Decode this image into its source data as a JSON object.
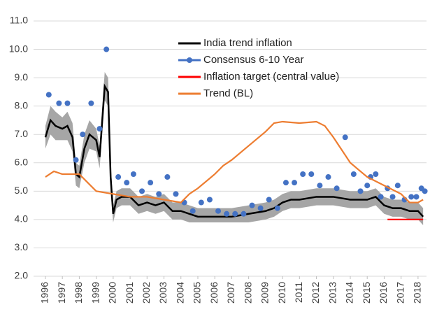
{
  "chart_data": {
    "type": "line",
    "xlim": [
      1995.3,
      2018.5
    ],
    "ylim": [
      2,
      11
    ],
    "xticks": [
      1996,
      1997,
      1998,
      1999,
      2000,
      2001,
      2002,
      2003,
      2004,
      2005,
      2006,
      2007,
      2008,
      2009,
      2010,
      2011,
      2012,
      2013,
      2014,
      2015,
      2016,
      2017,
      2018
    ],
    "yticks": [
      {
        "value": 2,
        "label": "2.0"
      },
      {
        "value": 3,
        "label": "3.0"
      },
      {
        "value": 4,
        "label": "4.0"
      },
      {
        "value": 5,
        "label": "5.0"
      },
      {
        "value": 6,
        "label": "6.0"
      },
      {
        "value": 7,
        "label": "7.0"
      },
      {
        "value": 8,
        "label": "8.0"
      },
      {
        "value": 9,
        "label": "9.0"
      },
      {
        "value": 10,
        "label": "10.0"
      },
      {
        "value": 11,
        "label": "11.0"
      }
    ],
    "grid": true,
    "series": [
      {
        "name": "India trend inflation",
        "color": "#000000",
        "band_color": "#a6a6a6",
        "x": [
          1996.0,
          1996.3,
          1996.6,
          1997.0,
          1997.3,
          1997.6,
          1997.8,
          1998.0,
          1998.3,
          1998.6,
          1999.0,
          1999.2,
          1999.5,
          1999.7,
          1999.85,
          2000.0,
          2000.2,
          2000.5,
          2001.0,
          2001.5,
          2002.0,
          2002.5,
          2003.0,
          2003.5,
          2004.0,
          2004.5,
          2005.0,
          2006.0,
          2007.0,
          2008.0,
          2009.0,
          2009.5,
          2010.0,
          2010.5,
          2011.0,
          2012.0,
          2013.0,
          2014.0,
          2015.0,
          2015.5,
          2016.0,
          2016.5,
          2017.0,
          2017.5,
          2018.0,
          2018.3
        ],
        "values": [
          6.9,
          7.5,
          7.3,
          7.2,
          7.3,
          6.9,
          5.6,
          5.5,
          6.5,
          7.0,
          6.8,
          6.2,
          8.7,
          8.5,
          5.5,
          4.2,
          4.7,
          4.8,
          4.8,
          4.5,
          4.6,
          4.5,
          4.6,
          4.3,
          4.3,
          4.2,
          4.1,
          4.1,
          4.1,
          4.2,
          4.3,
          4.4,
          4.6,
          4.7,
          4.7,
          4.8,
          4.8,
          4.7,
          4.7,
          4.8,
          4.5,
          4.4,
          4.4,
          4.3,
          4.3,
          4.1
        ],
        "lower": [
          6.5,
          7.0,
          6.8,
          6.8,
          6.8,
          6.4,
          5.2,
          5.1,
          6.0,
          6.5,
          6.4,
          5.8,
          8.2,
          8.0,
          5.0,
          3.9,
          4.4,
          4.5,
          4.5,
          4.2,
          4.3,
          4.2,
          4.3,
          4.0,
          4.0,
          3.9,
          3.9,
          3.9,
          3.9,
          3.9,
          4.0,
          4.1,
          4.3,
          4.4,
          4.4,
          4.5,
          4.5,
          4.4,
          4.4,
          4.5,
          4.2,
          4.1,
          4.1,
          4.0,
          4.0,
          3.8
        ],
        "upper": [
          7.3,
          8.0,
          7.8,
          7.6,
          7.8,
          7.4,
          6.0,
          5.9,
          7.0,
          7.5,
          7.2,
          6.6,
          9.2,
          9.0,
          6.0,
          4.5,
          5.0,
          5.1,
          5.1,
          4.8,
          4.9,
          4.8,
          4.9,
          4.6,
          4.6,
          4.5,
          4.4,
          4.4,
          4.4,
          4.5,
          4.6,
          4.7,
          4.9,
          5.0,
          5.0,
          5.1,
          5.1,
          5.0,
          5.0,
          5.1,
          4.8,
          4.7,
          4.7,
          4.6,
          4.6,
          4.4
        ]
      },
      {
        "name": "Consensus 6-10 Year",
        "color": "#4472c4",
        "style": "markers",
        "x": [
          1996.2,
          1996.8,
          1997.3,
          1997.8,
          1998.2,
          1998.7,
          1999.2,
          1999.6,
          2000.3,
          2000.8,
          2001.2,
          2001.7,
          2002.2,
          2002.7,
          2003.2,
          2003.7,
          2004.2,
          2004.7,
          2005.2,
          2005.7,
          2006.2,
          2006.7,
          2007.2,
          2007.7,
          2008.2,
          2008.7,
          2009.2,
          2009.7,
          2010.2,
          2010.7,
          2011.2,
          2011.7,
          2012.2,
          2012.7,
          2013.2,
          2013.7,
          2014.2,
          2014.6,
          2015.0,
          2015.2,
          2015.5,
          2015.8,
          2016.2,
          2016.5,
          2016.8,
          2017.2,
          2017.6,
          2017.9,
          2018.2,
          2018.4
        ],
        "values": [
          8.4,
          8.1,
          8.1,
          6.1,
          7.0,
          8.1,
          7.2,
          10.0,
          5.5,
          5.3,
          5.6,
          5.0,
          5.3,
          4.9,
          5.5,
          4.9,
          4.6,
          4.3,
          4.6,
          4.7,
          4.3,
          4.2,
          4.2,
          4.2,
          4.5,
          4.4,
          4.7,
          4.4,
          5.3,
          5.3,
          5.6,
          5.6,
          5.2,
          5.5,
          5.1,
          6.9,
          5.6,
          5.0,
          5.2,
          5.5,
          5.6,
          4.8,
          5.1,
          4.8,
          5.2,
          4.7,
          4.8,
          4.8,
          5.1,
          5.0
        ]
      },
      {
        "name": "Inflation target (central value)",
        "color": "#ff0000",
        "x": [
          2016.2,
          2018.3
        ],
        "values": [
          4.0,
          4.0
        ]
      },
      {
        "name": "Trend (BL)",
        "color": "#ed7d31",
        "x": [
          1996.0,
          1996.5,
          1997.0,
          1998.0,
          1998.5,
          1999.0,
          2000.0,
          2001.0,
          2002.0,
          2003.0,
          2004.0,
          2004.5,
          2005.0,
          2006.0,
          2006.5,
          2007.0,
          2008.0,
          2009.0,
          2009.5,
          2010.0,
          2011.0,
          2012.0,
          2012.5,
          2013.0,
          2014.0,
          2015.0,
          2016.0,
          2017.0,
          2017.5,
          2018.0,
          2018.3
        ],
        "values": [
          5.5,
          5.7,
          5.6,
          5.6,
          5.3,
          5.0,
          4.9,
          4.8,
          4.8,
          4.7,
          4.6,
          4.9,
          5.1,
          5.6,
          5.9,
          6.1,
          6.6,
          7.1,
          7.4,
          7.45,
          7.4,
          7.45,
          7.3,
          6.9,
          6.0,
          5.5,
          5.2,
          4.9,
          4.6,
          4.6,
          4.7
        ]
      }
    ]
  }
}
